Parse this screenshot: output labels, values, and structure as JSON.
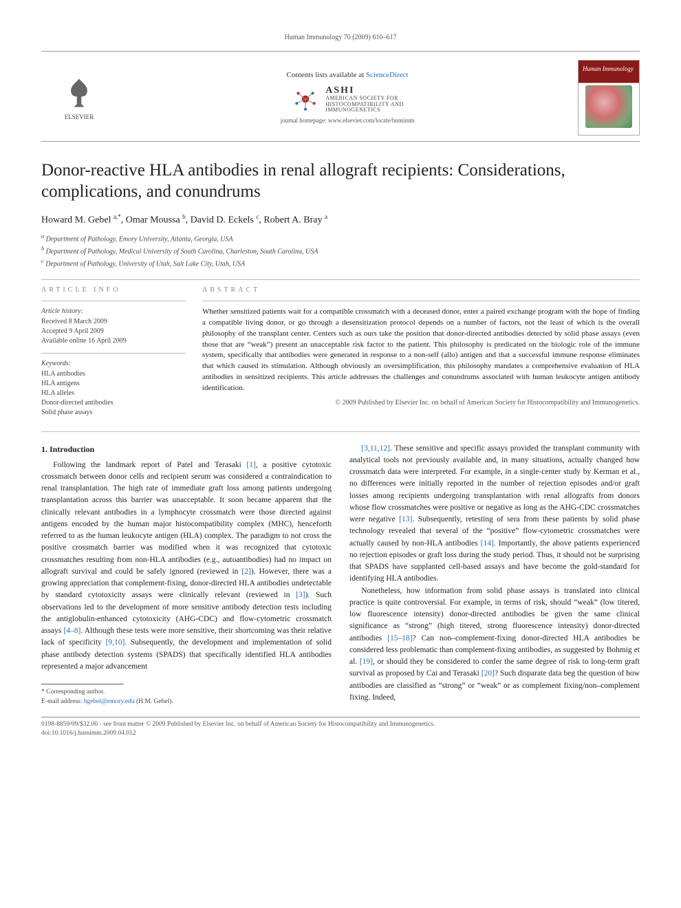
{
  "running_head": "Human Immunology 70 (2009) 610–617",
  "masthead": {
    "publisher": "ELSEVIER",
    "contents_line_prefix": "Contents lists available at ",
    "contents_line_link": "ScienceDirect",
    "society_abbrev": "ASHI",
    "society_lines": [
      "AMERICAN SOCIETY FOR",
      "HISTOCOMPATIBILITY AND",
      "IMMUNOGENETICS"
    ],
    "homepage": "journal homepage: www.elsevier.com/locate/humimm",
    "cover_title": "Human Immunology"
  },
  "title": "Donor-reactive HLA antibodies in renal allograft recipients: Considerations, complications, and conundrums",
  "authors_html": "Howard M. Gebel <sup>a,*</sup>, Omar Moussa <sup>b</sup>, David D. Eckels <sup>c</sup>, Robert A. Bray <sup>a</sup>",
  "affiliations": {
    "a": "Department of Pathology, Emory University, Atlanta, Georgia, USA",
    "b": "Department of Pathology, Medical University of South Carolina, Charleston, South Carolina, USA",
    "c": "Department of Pathology, University of Utah, Salt Lake City, Utah, USA"
  },
  "article_info": {
    "heading": "ARTICLE INFO",
    "history_heading": "Article history:",
    "history": [
      "Received 8 March 2009",
      "Accepted 9 April 2009",
      "Available online 16 April 2009"
    ],
    "keywords_heading": "Keywords:",
    "keywords": [
      "HLA antibodies",
      "HLA antigens",
      "HLA alleles",
      "Donor-directed antibodies",
      "Solid phase assays"
    ]
  },
  "abstract": {
    "heading": "ABSTRACT",
    "text": "Whether sensitized patients wait for a compatible crossmatch with a deceased donor, enter a paired exchange program with the hope of finding a compatible living donor, or go through a desensitization protocol depends on a number of factors, not the least of which is the overall philosophy of the transplant center. Centers such as ours take the position that donor-directed antibodies detected by solid phase assays (even those that are “weak”) present an unacceptable risk factor to the patient. This philosophy is predicated on the biologic role of the immune system, specifically that antibodies were generated in response to a non-self (allo) antigen and that a successful immune response eliminates that which caused its stimulation. Although obviously an oversimplification, this philosophy mandates a comprehensive evaluation of HLA antibodies in sensitized recipients. This article addresses the challenges and conundrums associated with human leukocyte antigen antibody identification.",
    "copyright": "© 2009 Published by Elsevier Inc. on behalf of American Society for Histocompatibility and Immunogenetics."
  },
  "section1": {
    "heading": "1. Introduction",
    "para1": "Following the landmark report of Patel and Terasaki [1], a positive cytotoxic crossmatch between donor cells and recipient serum was considered a contraindication to renal transplantation. The high rate of immediate graft loss among patients undergoing transplantation across this barrier was unacceptable. It soon became apparent that the clinically relevant antibodies in a lymphocyte crossmatch were those directed against antigens encoded by the human major histocompatibility complex (MHC), henceforth referred to as the human leukocyte antigen (HLA) complex. The paradigm to not cross the positive crossmatch barrier was modified when it was recognized that cytotoxic crossmatches resulting from non-HLA antibodies (e.g., autoantibodies) had no impact on allograft survival and could be safely ignored (reviewed in [2]). However, there was a growing appreciation that complement-fixing, donor-directed HLA antibodies undetectable by standard cytotoxicity assays were clinically relevant (reviewed in [3]). Such observations led to the development of more sensitive antibody detection tests including the antiglobulin-enhanced cytotoxicity (AHG-CDC) and flow-cytometric crossmatch assays [4–8]. Although these tests were more sensitive, their shortcoming was their relative lack of specificity [9,10]. Subsequently, the development and implementation of solid phase antibody detection systems (SPADS) that specifically identified HLA antibodies represented a major advancement",
    "para2": "[3,11,12]. These sensitive and specific assays provided the transplant community with analytical tools not previously available and, in many situations, actually changed how crossmatch data were interpreted. For example, in a single-center study by Kerman et al., no differences were initially reported in the number of rejection episodes and/or graft losses among recipients undergoing transplantation with renal allografts from donors whose flow crossmatches were positive or negative as long as the AHG-CDC crossmatches were negative [13]. Subsequently, retesting of sera from these patients by solid phase technology revealed that several of the “positive” flow-cytometric crossmatches were actually caused by non-HLA antibodies [14]. Importantly, the above patients experienced no rejection episodes or graft loss during the study period. Thus, it should not be surprising that SPADS have supplanted cell-based assays and have become the gold-standard for identifying HLA antibodies.",
    "para3": "Nonetheless, how information from solid phase assays is translated into clinical practice is quite controversial. For example, in terms of risk, should “weak” (low titered, low fluorescence intensity) donor-directed antibodies be given the same clinical significance as “strong” (high titered, strong fluorescence intensity) donor-directed antibodies [15–18]? Can non–complement-fixing donor-directed HLA antibodies be considered less problematic than complement-fixing antibodies, as suggested by Bohmig et al. [19], or should they be considered to confer the same degree of risk to long-term graft survival as proposed by Cai and Terasaki [20]? Such disparate data beg the question of how antibodies are classified as “strong” or “weak” or as complement fixing/non–complement fixing. Indeed,"
  },
  "footnotes": {
    "corr": "* Corresponding author.",
    "email_label": "E-mail address: ",
    "email": "hgebel@emory.edu",
    "email_who": " (H.M. Gebel)."
  },
  "footer": {
    "line1": "0198-8859/09/$32.00 - see front matter © 2009 Published by Elsevier Inc. on behalf of American Society for Histocompatibility and Immunogenetics.",
    "line2": "doi:10.1016/j.humimm.2009.04.012"
  },
  "colors": {
    "link": "#2a6bb0",
    "rule": "#999999",
    "text": "#222222",
    "muted": "#555555"
  }
}
